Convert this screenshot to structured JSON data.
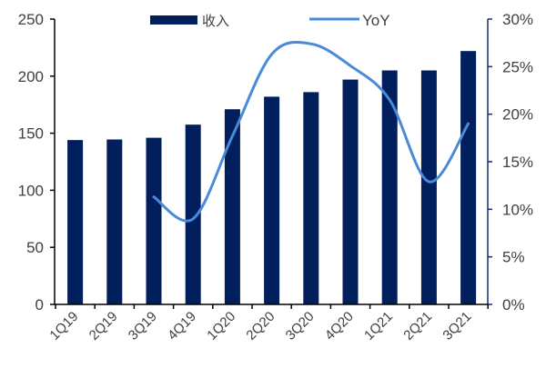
{
  "chart_data": {
    "type": "bar",
    "title": "",
    "xlabel": "",
    "ylabel": "",
    "categories": [
      "1Q19",
      "2Q19",
      "3Q19",
      "4Q19",
      "1Q20",
      "2Q20",
      "3Q20",
      "4Q20",
      "1Q21",
      "2Q21",
      "3Q21"
    ],
    "series": [
      {
        "name": "收入",
        "type": "bar",
        "axis": "left",
        "color": "#001f5c",
        "values": [
          144,
          144.5,
          146,
          157.5,
          171,
          182,
          186,
          197,
          205,
          205,
          222
        ]
      },
      {
        "name": "YoY",
        "type": "line",
        "axis": "right",
        "color": "#4a8ad8",
        "smooth": true,
        "values": [
          null,
          null,
          11.3,
          9.0,
          17.7,
          26.3,
          27.4,
          25.1,
          21.5,
          12.9,
          19.0
        ]
      }
    ],
    "ylim": [
      0,
      250
    ],
    "yticks": [
      0,
      50,
      100,
      150,
      200,
      250
    ],
    "ylim_right": [
      0,
      30
    ],
    "yticks_right": [
      "0%",
      "5%",
      "10%",
      "15%",
      "20%",
      "25%",
      "30%"
    ],
    "grid": false,
    "legend_position": "top-center"
  },
  "legend": {
    "items": [
      {
        "label": "收入",
        "kind": "bar",
        "color": "#001f5c"
      },
      {
        "label": "YoY",
        "kind": "line",
        "color": "#4a8ad8"
      }
    ]
  }
}
